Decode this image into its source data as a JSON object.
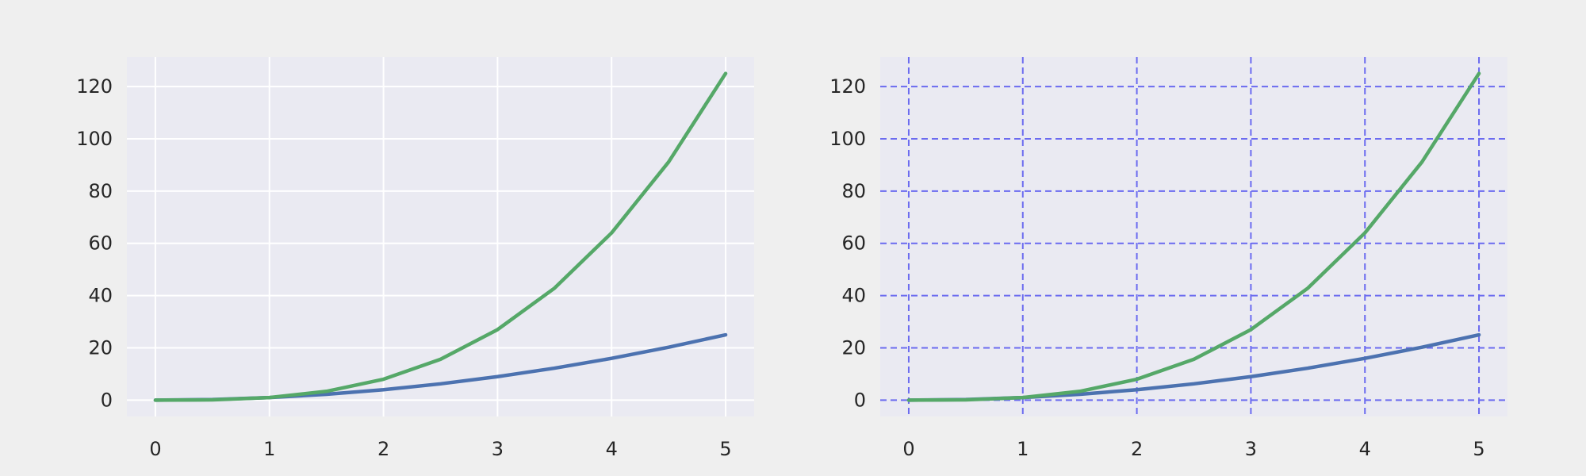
{
  "chart_data": [
    {
      "type": "line",
      "x": [
        0,
        0.5,
        1,
        1.5,
        2,
        2.5,
        3,
        3.5,
        4,
        4.5,
        5
      ],
      "series": [
        {
          "values": [
            0,
            0.25,
            1,
            2.25,
            4,
            6.25,
            9,
            12.25,
            16,
            20.25,
            25
          ],
          "color": "#4c72b0"
        },
        {
          "values": [
            0,
            0.125,
            1,
            3.375,
            8,
            15.625,
            27,
            42.875,
            64,
            91.125,
            125
          ],
          "color": "#55a868"
        }
      ],
      "xticks": [
        0,
        1,
        2,
        3,
        4,
        5
      ],
      "yticks": [
        0,
        20,
        40,
        60,
        80,
        100,
        120
      ],
      "xlim": [
        -0.25,
        5.25
      ],
      "ylim": [
        -6.25,
        131.25
      ],
      "grid": true,
      "grid_style": "solid",
      "grid_color": "#ffffff",
      "background": "#eaeaf2"
    },
    {
      "type": "line",
      "x": [
        0,
        0.5,
        1,
        1.5,
        2,
        2.5,
        3,
        3.5,
        4,
        4.5,
        5
      ],
      "series": [
        {
          "values": [
            0,
            0.25,
            1,
            2.25,
            4,
            6.25,
            9,
            12.25,
            16,
            20.25,
            25
          ],
          "color": "#4c72b0"
        },
        {
          "values": [
            0,
            0.125,
            1,
            3.375,
            8,
            15.625,
            27,
            42.875,
            64,
            91.125,
            125
          ],
          "color": "#55a868"
        }
      ],
      "xticks": [
        0,
        1,
        2,
        3,
        4,
        5
      ],
      "yticks": [
        0,
        20,
        40,
        60,
        80,
        100,
        120
      ],
      "xlim": [
        -0.25,
        5.25
      ],
      "ylim": [
        -6.25,
        131.25
      ],
      "grid": true,
      "grid_style": "dashed",
      "grid_color": "#6b6bf0",
      "background": "#eaeaf2"
    }
  ]
}
